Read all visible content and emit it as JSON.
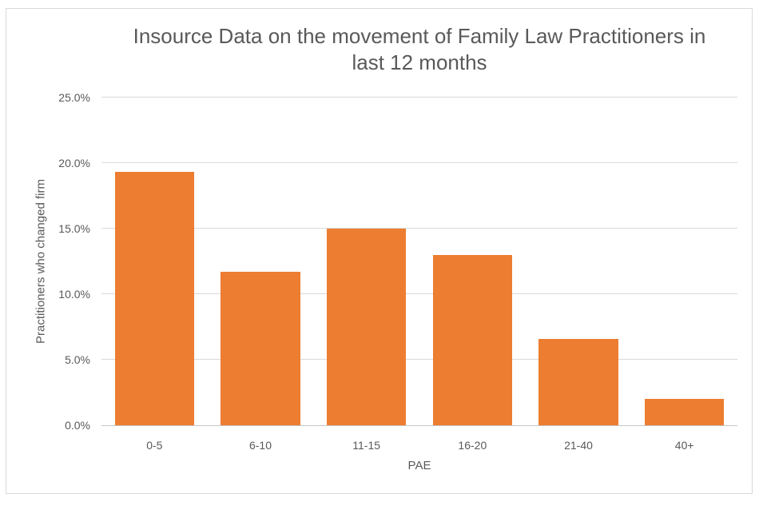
{
  "chart_data": {
    "type": "bar",
    "title": "Insource Data on the movement of Family Law Practitioners in last 12 months",
    "title_lines": [
      "Insource Data on the movement of Family Law Practitioners in",
      "last 12 months"
    ],
    "categories": [
      "0-5",
      "6-10",
      "11-15",
      "16-20",
      "21-40",
      "40+"
    ],
    "values": [
      19.3,
      11.7,
      15.0,
      13.0,
      6.6,
      2.0
    ],
    "xlabel": "PAE",
    "ylabel": "Practitioners who changed firm",
    "ylim": [
      0,
      25
    ],
    "ytick_step": 5,
    "yticks": [
      0,
      5,
      10,
      15,
      20,
      25
    ],
    "ytick_labels": [
      "0.0%",
      "5.0%",
      "10.0%",
      "15.0%",
      "20.0%",
      "25.0%"
    ],
    "grid": true,
    "legend": "none",
    "colors": {
      "bar_fill": "#ED7D31",
      "gridline": "#D9D9D9",
      "axis_line": "#C6C6C6",
      "text": "#595959",
      "chart_border": "#D9D9D9",
      "background": "#FFFFFF"
    }
  }
}
